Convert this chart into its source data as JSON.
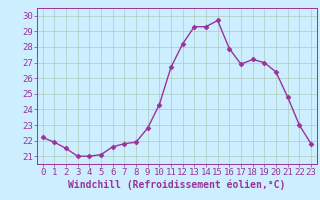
{
  "x": [
    0,
    1,
    2,
    3,
    4,
    5,
    6,
    7,
    8,
    9,
    10,
    11,
    12,
    13,
    14,
    15,
    16,
    17,
    18,
    19,
    20,
    21,
    22,
    23
  ],
  "y": [
    22.2,
    21.9,
    21.5,
    21.0,
    21.0,
    21.1,
    21.6,
    21.8,
    21.9,
    22.8,
    24.3,
    26.7,
    28.2,
    29.3,
    29.3,
    29.7,
    27.9,
    26.9,
    27.2,
    27.0,
    26.4,
    24.8,
    23.0,
    21.8
  ],
  "line_color": "#993399",
  "marker": "D",
  "marker_size": 2.5,
  "bg_color": "#cceeff",
  "grid_color": "#aaccbb",
  "xlabel": "Windchill (Refroidissement éolien,°C)",
  "xlabel_fontsize": 7,
  "tick_fontsize": 6.5,
  "ylim": [
    20.5,
    30.5
  ],
  "yticks": [
    21,
    22,
    23,
    24,
    25,
    26,
    27,
    28,
    29,
    30
  ],
  "xticks": [
    0,
    1,
    2,
    3,
    4,
    5,
    6,
    7,
    8,
    9,
    10,
    11,
    12,
    13,
    14,
    15,
    16,
    17,
    18,
    19,
    20,
    21,
    22,
    23
  ],
  "line_width": 1.0
}
